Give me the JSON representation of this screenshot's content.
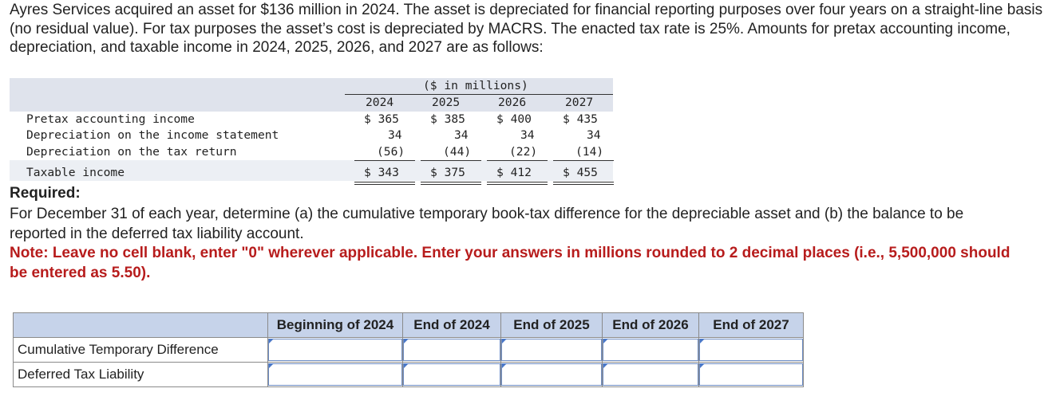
{
  "intro": "Ayres Services acquired an asset for $136 million in 2024. The asset is depreciated for financial reporting purposes over four years on a straight-line basis (no residual value). For tax purposes the asset’s cost is depreciated by MACRS. The enacted tax rate is 25%. Amounts for pretax accounting income, depreciation, and taxable income in 2024, 2025, 2026, and 2027 are as follows:",
  "data_table": {
    "unit_header": "($ in millions)",
    "years": [
      "2024",
      "2025",
      "2026",
      "2027"
    ],
    "rows": [
      {
        "label": "Pretax accounting income",
        "values": [
          "$ 365",
          "$ 385",
          "$ 400",
          "$ 435"
        ]
      },
      {
        "label": "Depreciation on the income statement",
        "values": [
          "34",
          "34",
          "34",
          "34"
        ]
      },
      {
        "label": "Depreciation on the tax return",
        "values": [
          "(56)",
          "(44)",
          "(22)",
          "(14)"
        ]
      },
      {
        "label": "Taxable income",
        "values": [
          "$ 343",
          "$ 375",
          "$ 412",
          "$ 455"
        ]
      }
    ]
  },
  "required_heading": "Required:",
  "required_text": "For December 31 of each year, determine (a) the cumulative temporary book-tax difference for the depreciable asset and (b) the balance to be reported in the deferred tax liability account.",
  "note": "Note: Leave no cell blank, enter \"0\" wherever applicable. Enter your answers in millions rounded to 2 decimal places (i.e., 5,500,000 should be entered as 5.50).",
  "answer_table": {
    "columns": [
      "Beginning of 2024",
      "End of 2024",
      "End of 2025",
      "End of 2026",
      "End of 2027"
    ],
    "rows": [
      "Cumulative Temporary Difference",
      "Deferred Tax Liability"
    ]
  }
}
